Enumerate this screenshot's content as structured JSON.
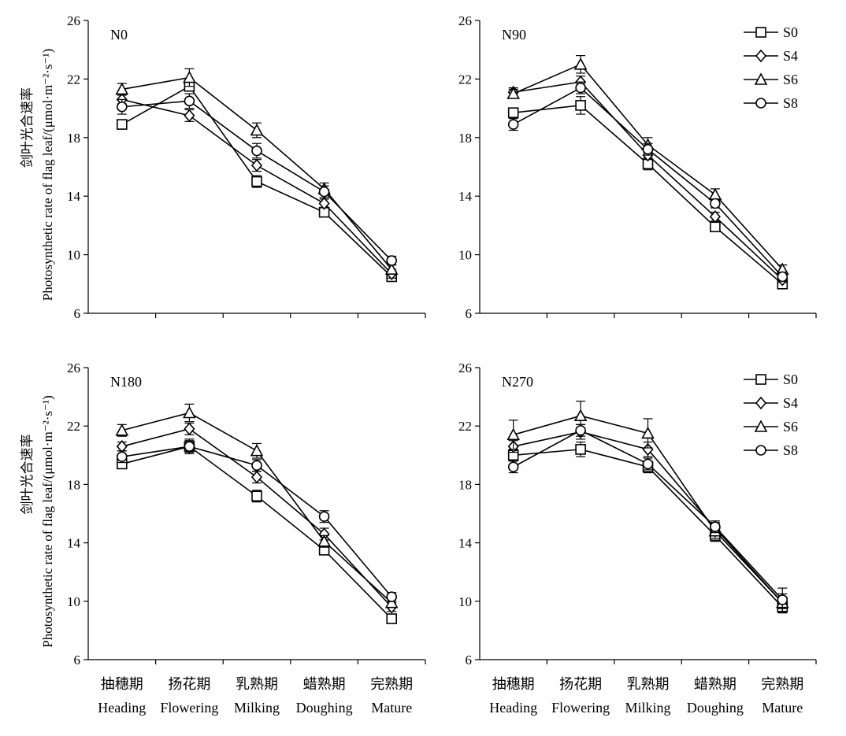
{
  "figure": {
    "ylabel_cn": "剑叶光合速率",
    "ylabel_en": "Photosynthetic rate of flag leaf/(μmol·m⁻²·s⁻¹)",
    "categories_cn": [
      "抽穗期",
      "扬花期",
      "乳熟期",
      "蜡熟期",
      "完熟期"
    ],
    "categories_en": [
      "Heading",
      "Flowering",
      "Milking",
      "Doughing",
      "Mature"
    ],
    "legend": [
      "S0",
      "S4",
      "S6",
      "S8"
    ]
  },
  "chart_data": [
    {
      "type": "line",
      "title": "N0",
      "categories": [
        "Heading",
        "Flowering",
        "Milking",
        "Doughing",
        "Mature"
      ],
      "ylim": [
        6,
        26
      ],
      "yticks": [
        6,
        10,
        14,
        18,
        22,
        26
      ],
      "legend": false,
      "series": [
        {
          "name": "S0",
          "marker": "square",
          "values": [
            18.9,
            21.5,
            15.0,
            12.9,
            8.5
          ],
          "errors": [
            0.3,
            0.3,
            0.4,
            0.3,
            0.3
          ]
        },
        {
          "name": "S4",
          "marker": "diamond",
          "values": [
            20.6,
            19.5,
            16.1,
            13.5,
            8.7
          ],
          "errors": [
            0.3,
            0.4,
            0.4,
            0.3,
            0.3
          ]
        },
        {
          "name": "S6",
          "marker": "triangle",
          "values": [
            21.3,
            22.1,
            18.5,
            14.5,
            9.0
          ],
          "errors": [
            0.4,
            0.6,
            0.5,
            0.4,
            0.3
          ]
        },
        {
          "name": "S8",
          "marker": "circle",
          "values": [
            20.1,
            20.5,
            17.1,
            14.3,
            9.6
          ],
          "errors": [
            0.5,
            0.5,
            0.5,
            0.4,
            0.3
          ]
        }
      ]
    },
    {
      "type": "line",
      "title": "N90",
      "categories": [
        "Heading",
        "Flowering",
        "Milking",
        "Doughing",
        "Mature"
      ],
      "ylim": [
        6,
        26
      ],
      "yticks": [
        6,
        10,
        14,
        18,
        22,
        26
      ],
      "legend": true,
      "legend_position": "top-right",
      "series": [
        {
          "name": "S0",
          "marker": "square",
          "values": [
            19.7,
            20.2,
            16.2,
            11.9,
            8.0
          ],
          "errors": [
            0.3,
            0.6,
            0.4,
            0.3,
            0.2
          ]
        },
        {
          "name": "S4",
          "marker": "diamond",
          "values": [
            21.1,
            21.8,
            16.8,
            12.6,
            8.3
          ],
          "errors": [
            0.3,
            0.4,
            0.3,
            0.3,
            0.2
          ]
        },
        {
          "name": "S6",
          "marker": "triangle",
          "values": [
            21.0,
            23.0,
            17.5,
            14.1,
            9.0
          ],
          "errors": [
            0.3,
            0.6,
            0.5,
            0.4,
            0.3
          ]
        },
        {
          "name": "S8",
          "marker": "circle",
          "values": [
            18.9,
            21.4,
            17.2,
            13.5,
            8.5
          ],
          "errors": [
            0.4,
            0.4,
            0.4,
            0.3,
            0.3
          ]
        }
      ]
    },
    {
      "type": "line",
      "title": "N180",
      "categories": [
        "Heading",
        "Flowering",
        "Milking",
        "Doughing",
        "Mature"
      ],
      "ylim": [
        6,
        26
      ],
      "yticks": [
        6,
        10,
        14,
        18,
        22,
        26
      ],
      "legend": false,
      "series": [
        {
          "name": "S0",
          "marker": "square",
          "values": [
            19.4,
            20.6,
            17.2,
            13.5,
            8.8
          ],
          "errors": [
            0.3,
            0.5,
            0.4,
            0.3,
            0.2
          ]
        },
        {
          "name": "S4",
          "marker": "diamond",
          "values": [
            20.6,
            21.8,
            18.5,
            14.6,
            9.6
          ],
          "errors": [
            0.3,
            0.4,
            0.4,
            0.4,
            0.3
          ]
        },
        {
          "name": "S6",
          "marker": "triangle",
          "values": [
            21.7,
            22.9,
            20.3,
            14.1,
            9.9
          ],
          "errors": [
            0.4,
            0.6,
            0.5,
            0.4,
            0.3
          ]
        },
        {
          "name": "S8",
          "marker": "circle",
          "values": [
            19.9,
            20.6,
            19.3,
            15.8,
            10.3
          ],
          "errors": [
            0.4,
            0.4,
            0.4,
            0.4,
            0.3
          ]
        }
      ]
    },
    {
      "type": "line",
      "title": "N270",
      "categories": [
        "Heading",
        "Flowering",
        "Milking",
        "Doughing",
        "Mature"
      ],
      "ylim": [
        6,
        26
      ],
      "yticks": [
        6,
        10,
        14,
        18,
        22,
        26
      ],
      "legend": true,
      "legend_position": "top-right",
      "series": [
        {
          "name": "S0",
          "marker": "square",
          "values": [
            20.0,
            20.4,
            19.2,
            14.5,
            9.6
          ],
          "errors": [
            0.4,
            0.5,
            0.4,
            0.4,
            0.4
          ]
        },
        {
          "name": "S4",
          "marker": "diamond",
          "values": [
            20.6,
            21.6,
            20.4,
            15.0,
            9.9
          ],
          "errors": [
            0.4,
            0.5,
            0.5,
            0.4,
            0.4
          ]
        },
        {
          "name": "S6",
          "marker": "triangle",
          "values": [
            21.4,
            22.7,
            21.5,
            14.8,
            9.9
          ],
          "errors": [
            1.0,
            1.0,
            1.0,
            0.5,
            0.6
          ]
        },
        {
          "name": "S8",
          "marker": "circle",
          "values": [
            19.2,
            21.7,
            19.4,
            15.1,
            10.1
          ],
          "errors": [
            0.4,
            0.4,
            0.4,
            0.4,
            0.8
          ]
        }
      ]
    }
  ]
}
